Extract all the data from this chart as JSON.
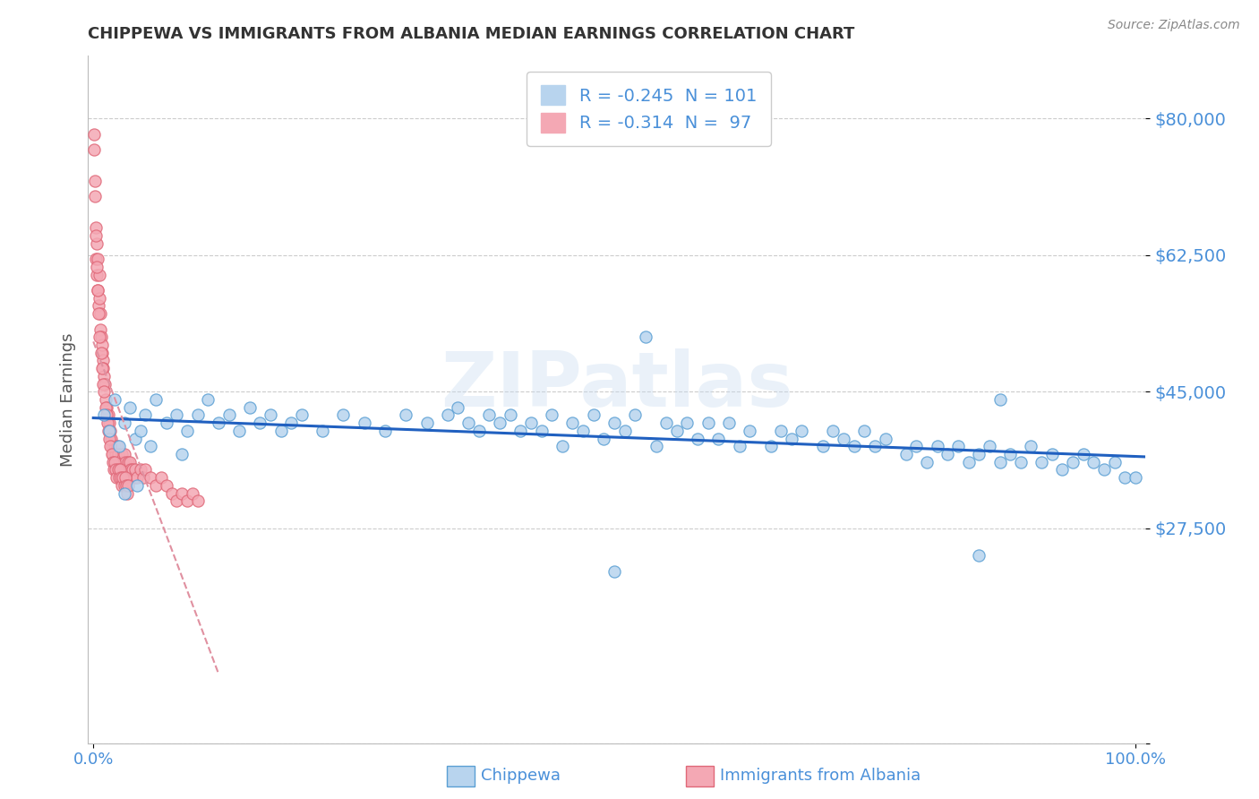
{
  "title": "CHIPPEWA VS IMMIGRANTS FROM ALBANIA MEDIAN EARNINGS CORRELATION CHART",
  "source": "Source: ZipAtlas.com",
  "ylabel": "Median Earnings",
  "y_ticks": [
    0,
    27500,
    45000,
    62500,
    80000
  ],
  "y_tick_labels": [
    "",
    "$27,500",
    "$45,000",
    "$62,500",
    "$80,000"
  ],
  "chippewa_color": "#b8d4ee",
  "albania_color": "#f4a8b4",
  "chippewa_edge": "#5a9fd4",
  "albania_edge": "#e06878",
  "trend_blue": "#2060c0",
  "trend_pink": "#e090a0",
  "watermark": "ZIPatlas",
  "title_color": "#333333",
  "axis_label_color": "#4a90d9",
  "r_n_color": "#4a90d9",
  "background": "#ffffff",
  "legend_r1": "R = -0.245",
  "legend_n1": "N = 101",
  "legend_r2": "R = -0.314",
  "legend_n2": "N =  97",
  "chippewa_x": [
    1.0,
    1.5,
    2.0,
    2.5,
    3.0,
    3.5,
    4.0,
    4.5,
    5.0,
    5.5,
    6.0,
    7.0,
    8.0,
    9.0,
    10.0,
    11.0,
    12.0,
    13.0,
    14.0,
    15.0,
    16.0,
    17.0,
    18.0,
    19.0,
    20.0,
    22.0,
    24.0,
    26.0,
    28.0,
    30.0,
    32.0,
    34.0,
    35.0,
    36.0,
    37.0,
    38.0,
    39.0,
    40.0,
    41.0,
    42.0,
    43.0,
    44.0,
    45.0,
    46.0,
    47.0,
    48.0,
    49.0,
    50.0,
    51.0,
    52.0,
    54.0,
    55.0,
    56.0,
    57.0,
    58.0,
    59.0,
    60.0,
    61.0,
    62.0,
    63.0,
    65.0,
    66.0,
    67.0,
    68.0,
    70.0,
    71.0,
    72.0,
    73.0,
    74.0,
    75.0,
    76.0,
    78.0,
    79.0,
    80.0,
    81.0,
    82.0,
    83.0,
    84.0,
    85.0,
    86.0,
    87.0,
    88.0,
    89.0,
    90.0,
    91.0,
    92.0,
    93.0,
    94.0,
    95.0,
    96.0,
    97.0,
    98.0,
    99.0,
    100.0,
    3.0,
    4.2,
    8.5,
    50.0,
    85.0,
    87.0,
    53.0
  ],
  "chippewa_y": [
    42000,
    40000,
    44000,
    38000,
    41000,
    43000,
    39000,
    40000,
    42000,
    38000,
    44000,
    41000,
    42000,
    40000,
    42000,
    44000,
    41000,
    42000,
    40000,
    43000,
    41000,
    42000,
    40000,
    41000,
    42000,
    40000,
    42000,
    41000,
    40000,
    42000,
    41000,
    42000,
    43000,
    41000,
    40000,
    42000,
    41000,
    42000,
    40000,
    41000,
    40000,
    42000,
    38000,
    41000,
    40000,
    42000,
    39000,
    41000,
    40000,
    42000,
    38000,
    41000,
    40000,
    41000,
    39000,
    41000,
    39000,
    41000,
    38000,
    40000,
    38000,
    40000,
    39000,
    40000,
    38000,
    40000,
    39000,
    38000,
    40000,
    38000,
    39000,
    37000,
    38000,
    36000,
    38000,
    37000,
    38000,
    36000,
    37000,
    38000,
    36000,
    37000,
    36000,
    38000,
    36000,
    37000,
    35000,
    36000,
    37000,
    36000,
    35000,
    36000,
    34000,
    34000,
    32000,
    33000,
    37000,
    22000,
    24000,
    44000,
    52000
  ],
  "albania_x": [
    0.1,
    0.15,
    0.2,
    0.25,
    0.3,
    0.35,
    0.4,
    0.45,
    0.5,
    0.55,
    0.6,
    0.65,
    0.7,
    0.75,
    0.8,
    0.85,
    0.9,
    0.95,
    1.0,
    1.1,
    1.2,
    1.3,
    1.4,
    1.5,
    1.6,
    1.7,
    1.8,
    1.9,
    2.0,
    2.1,
    2.2,
    2.3,
    2.4,
    2.5,
    2.6,
    2.7,
    2.8,
    2.9,
    3.0,
    3.1,
    3.2,
    3.3,
    3.4,
    3.5,
    3.6,
    3.7,
    3.8,
    3.9,
    4.0,
    4.2,
    4.5,
    4.8,
    5.0,
    5.5,
    6.0,
    6.5,
    7.0,
    7.5,
    8.0,
    8.5,
    9.0,
    9.5,
    10.0,
    0.12,
    0.22,
    0.32,
    0.42,
    0.52,
    0.62,
    0.72,
    0.82,
    0.92,
    1.05,
    1.15,
    1.25,
    1.35,
    1.45,
    1.55,
    1.65,
    1.75,
    1.85,
    1.95,
    2.05,
    2.15,
    2.25,
    2.35,
    2.45,
    2.55,
    2.65,
    2.75,
    2.85,
    2.95,
    3.05,
    3.15,
    3.25,
    3.35,
    0.08
  ],
  "albania_y": [
    76000,
    72000,
    66000,
    62000,
    64000,
    60000,
    62000,
    58000,
    56000,
    60000,
    57000,
    55000,
    53000,
    52000,
    50000,
    51000,
    49000,
    48000,
    47000,
    46000,
    44000,
    43000,
    42000,
    41000,
    40000,
    39000,
    38000,
    37000,
    38000,
    37000,
    36000,
    38000,
    37000,
    36000,
    35000,
    37000,
    36000,
    35000,
    37000,
    36000,
    35000,
    36000,
    35000,
    36000,
    35000,
    34000,
    35000,
    34000,
    35000,
    34000,
    35000,
    34000,
    35000,
    34000,
    33000,
    34000,
    33000,
    32000,
    31000,
    32000,
    31000,
    32000,
    31000,
    70000,
    65000,
    61000,
    58000,
    55000,
    52000,
    50000,
    48000,
    46000,
    45000,
    43000,
    42000,
    41000,
    40000,
    39000,
    38000,
    37000,
    36000,
    35000,
    36000,
    35000,
    34000,
    35000,
    34000,
    35000,
    34000,
    33000,
    34000,
    33000,
    34000,
    33000,
    32000,
    33000,
    78000
  ]
}
